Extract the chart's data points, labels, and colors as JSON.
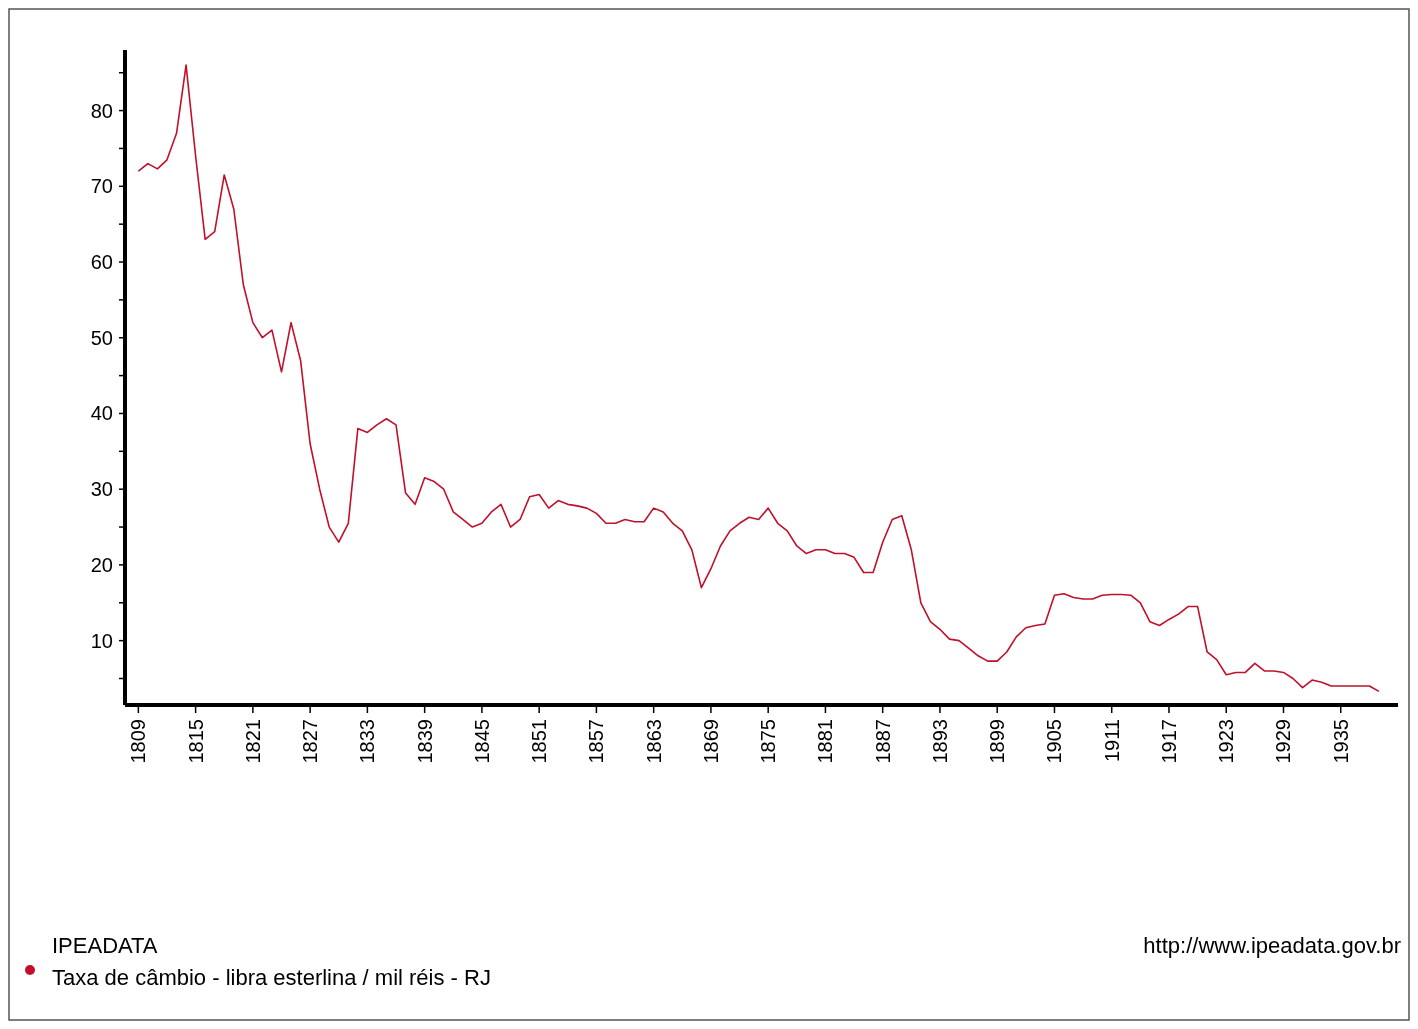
{
  "chart_data": {
    "type": "line",
    "x": [
      1809,
      1810,
      1811,
      1812,
      1813,
      1814,
      1815,
      1816,
      1817,
      1818,
      1819,
      1820,
      1821,
      1822,
      1823,
      1824,
      1825,
      1826,
      1827,
      1828,
      1829,
      1830,
      1831,
      1832,
      1833,
      1834,
      1835,
      1836,
      1837,
      1838,
      1839,
      1840,
      1841,
      1842,
      1843,
      1844,
      1845,
      1846,
      1847,
      1848,
      1849,
      1850,
      1851,
      1852,
      1853,
      1854,
      1855,
      1856,
      1857,
      1858,
      1859,
      1860,
      1861,
      1862,
      1863,
      1864,
      1865,
      1866,
      1867,
      1868,
      1869,
      1870,
      1871,
      1872,
      1873,
      1874,
      1875,
      1876,
      1877,
      1878,
      1879,
      1880,
      1881,
      1882,
      1883,
      1884,
      1885,
      1886,
      1887,
      1888,
      1889,
      1890,
      1891,
      1892,
      1893,
      1894,
      1895,
      1896,
      1897,
      1898,
      1899,
      1900,
      1901,
      1902,
      1903,
      1904,
      1905,
      1906,
      1907,
      1908,
      1909,
      1910,
      1911,
      1912,
      1913,
      1914,
      1915,
      1916,
      1917,
      1918,
      1919,
      1920,
      1921,
      1922,
      1923,
      1924,
      1925,
      1926,
      1927,
      1928,
      1929,
      1930,
      1931,
      1932,
      1933,
      1934,
      1935,
      1936,
      1937,
      1938,
      1939
    ],
    "series": [
      {
        "name": "Taxa de câmbio - libra esterlina / mil réis - RJ",
        "color": "#c0102a",
        "values": [
          72,
          73,
          72.3,
          73.5,
          77,
          86,
          74,
          63,
          64,
          71.5,
          67,
          57,
          52,
          50,
          51,
          45.5,
          52,
          47,
          36,
          30,
          25,
          23,
          25.5,
          38,
          37.5,
          38.5,
          39.3,
          38.5,
          29.5,
          28,
          31.5,
          31,
          30,
          27,
          26,
          25,
          25.5,
          27,
          28,
          25,
          26,
          29,
          29.3,
          27.5,
          28.5,
          28,
          27.8,
          27.5,
          26.8,
          25.5,
          25.5,
          26,
          25.7,
          25.7,
          27.5,
          27,
          25.5,
          24.5,
          22,
          17,
          19.5,
          22.5,
          24.5,
          25.5,
          26.3,
          26,
          27.5,
          25.5,
          24.5,
          22.5,
          21.5,
          22,
          22,
          21.5,
          21.5,
          21,
          19,
          19,
          23,
          26,
          26.5,
          22,
          15,
          12.5,
          11.5,
          10.2,
          10,
          9,
          8,
          7.3,
          7.3,
          8.5,
          10.5,
          11.7,
          12,
          12.2,
          16,
          16.2,
          15.7,
          15.5,
          15.5,
          16,
          16.1,
          16.1,
          16,
          15,
          12.5,
          12,
          12.8,
          13.5,
          14.5,
          14.5,
          8.5,
          7.5,
          5.5,
          5.8,
          5.8,
          7,
          6,
          6,
          5.8,
          5,
          3.8,
          4.8,
          4.5,
          4,
          4,
          4,
          4,
          4,
          3.3
        ]
      }
    ],
    "xlim": [
      1807.6,
      1941
    ],
    "xticks": [
      1809,
      1815,
      1821,
      1827,
      1833,
      1839,
      1845,
      1851,
      1857,
      1863,
      1869,
      1875,
      1881,
      1887,
      1893,
      1899,
      1905,
      1911,
      1917,
      1923,
      1929,
      1935
    ],
    "ylim": [
      1.5,
      88
    ],
    "yticks": [
      {
        "value": 5,
        "label": null
      },
      10,
      {
        "value": 15,
        "label": null
      },
      20,
      {
        "value": 25,
        "label": null
      },
      30,
      {
        "value": 35,
        "label": null
      },
      40,
      {
        "value": 45,
        "label": null
      },
      50,
      {
        "value": 55,
        "label": null
      },
      60,
      {
        "value": 65,
        "label": null
      },
      70,
      {
        "value": 75,
        "label": null
      },
      80,
      {
        "value": 85,
        "label": null
      }
    ],
    "grid": false,
    "legend": "bottom left",
    "annotations": [
      "IPEADATA",
      "http://www.ipeadata.gov.br"
    ]
  }
}
